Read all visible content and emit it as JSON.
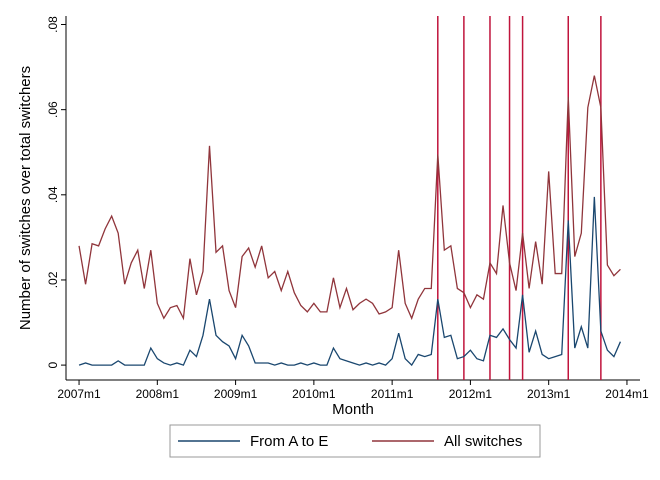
{
  "chart_data": {
    "type": "line",
    "y_label": "Number of switches over total switchers",
    "x_label": "Month",
    "x": [
      "2007m1",
      "2007m2",
      "2007m3",
      "2007m4",
      "2007m5",
      "2007m6",
      "2007m7",
      "2007m8",
      "2007m9",
      "2007m10",
      "2007m11",
      "2007m12",
      "2008m1",
      "2008m2",
      "2008m3",
      "2008m4",
      "2008m5",
      "2008m6",
      "2008m7",
      "2008m8",
      "2008m9",
      "2008m10",
      "2008m11",
      "2008m12",
      "2009m1",
      "2009m2",
      "2009m3",
      "2009m4",
      "2009m5",
      "2009m6",
      "2009m7",
      "2009m8",
      "2009m9",
      "2009m10",
      "2009m11",
      "2009m12",
      "2010m1",
      "2010m2",
      "2010m3",
      "2010m4",
      "2010m5",
      "2010m6",
      "2010m7",
      "2010m8",
      "2010m9",
      "2010m10",
      "2010m11",
      "2010m12",
      "2011m1",
      "2011m2",
      "2011m3",
      "2011m4",
      "2011m5",
      "2011m6",
      "2011m7",
      "2011m8",
      "2011m9",
      "2011m10",
      "2011m11",
      "2011m12",
      "2012m1",
      "2012m2",
      "2012m3",
      "2012m4",
      "2012m5",
      "2012m6",
      "2012m7",
      "2012m8",
      "2012m9",
      "2012m10",
      "2012m11",
      "2012m12",
      "2013m1",
      "2013m2",
      "2013m3",
      "2013m4",
      "2013m5",
      "2013m6",
      "2013m7",
      "2013m8",
      "2013m9",
      "2013m10",
      "2013m11",
      "2013m12"
    ],
    "series": [
      {
        "name": "From A to E",
        "color": "#1a476f",
        "values": [
          0,
          0.0005,
          0,
          0,
          0,
          0,
          0.001,
          0,
          0,
          0,
          0,
          0.004,
          0.0015,
          0.0005,
          0,
          0.0005,
          0,
          0.0035,
          0.002,
          0.007,
          0.0155,
          0.007,
          0.0055,
          0.0045,
          0.0015,
          0.007,
          0.0045,
          0.0005,
          0.0005,
          0.0005,
          0,
          0.0005,
          0,
          0,
          0.0005,
          0,
          0.0005,
          0,
          0,
          0.004,
          0.0015,
          0.001,
          0.0005,
          0,
          0.0005,
          0,
          0.0005,
          0,
          0.0015,
          0.0075,
          0.0015,
          0,
          0.0025,
          0.002,
          0.0025,
          0.0155,
          0.0065,
          0.007,
          0.0015,
          0.002,
          0.0035,
          0.0015,
          0.001,
          0.007,
          0.0065,
          0.0085,
          0.006,
          0.004,
          0.0165,
          0.003,
          0.008,
          0.0025,
          0.0015,
          0.002,
          0.0025,
          0.034,
          0.004,
          0.009,
          0.004,
          0.0395,
          0.008,
          0.0035,
          0.002,
          0.0055
        ]
      },
      {
        "name": "All switches",
        "color": "#90353b",
        "values": [
          0.028,
          0.019,
          0.0285,
          0.028,
          0.032,
          0.035,
          0.031,
          0.019,
          0.024,
          0.027,
          0.018,
          0.027,
          0.0145,
          0.011,
          0.0135,
          0.014,
          0.011,
          0.025,
          0.0165,
          0.022,
          0.0515,
          0.0265,
          0.028,
          0.0175,
          0.0135,
          0.0255,
          0.0275,
          0.023,
          0.028,
          0.0205,
          0.022,
          0.0175,
          0.022,
          0.017,
          0.014,
          0.0125,
          0.0145,
          0.0125,
          0.0125,
          0.0205,
          0.0135,
          0.018,
          0.013,
          0.0145,
          0.0155,
          0.0145,
          0.012,
          0.0125,
          0.0135,
          0.027,
          0.0145,
          0.011,
          0.0155,
          0.018,
          0.018,
          0.0495,
          0.027,
          0.028,
          0.018,
          0.017,
          0.0135,
          0.0165,
          0.0155,
          0.024,
          0.0215,
          0.0375,
          0.024,
          0.0175,
          0.031,
          0.018,
          0.029,
          0.019,
          0.0455,
          0.0215,
          0.0215,
          0.063,
          0.0255,
          0.031,
          0.0605,
          0.068,
          0.0605,
          0.0235,
          0.021,
          0.0225
        ]
      }
    ],
    "reference_lines": {
      "color": "#c0143c",
      "x": [
        "2011m8",
        "2011m12",
        "2012m4",
        "2012m7",
        "2012m9",
        "2013m4",
        "2013m9"
      ]
    },
    "xlim": [
      "2006m11",
      "2014m3"
    ],
    "xticks": [
      "2007m1",
      "2008m1",
      "2009m1",
      "2010m1",
      "2011m1",
      "2012m1",
      "2013m1",
      "2014m1"
    ],
    "ylim": [
      -0.0035,
      0.082
    ],
    "yticks": [
      0,
      {
        "value": 0.02,
        "label": ".02"
      },
      {
        "value": 0.04,
        "label": ".04"
      },
      {
        "value": 0.06,
        "label": ".06"
      },
      {
        "value": 0.08,
        "label": ".08"
      }
    ]
  }
}
